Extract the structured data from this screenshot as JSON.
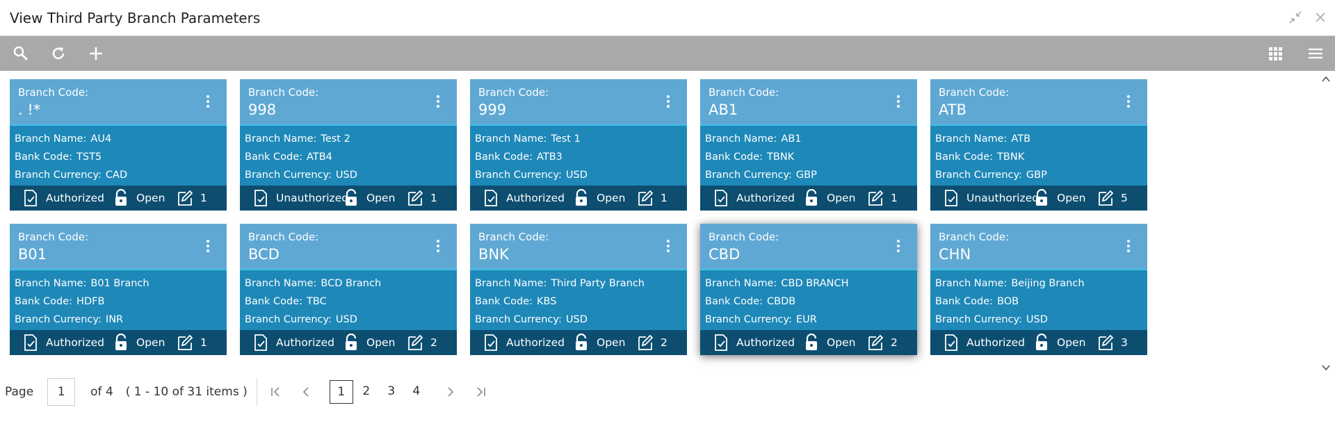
{
  "window": {
    "title": "View Third Party Branch Parameters"
  },
  "toolbar": {
    "icons": [
      "search-icon",
      "refresh-icon",
      "add-icon",
      "grid-view-icon",
      "list-view-icon"
    ]
  },
  "card_labels": {
    "code": "Branch Code:",
    "name": "Branch Name:",
    "bank": "Bank Code:",
    "currency": "Branch Currency:"
  },
  "cards": [
    {
      "code": ". !*",
      "name": "AU4",
      "bank": "TST5",
      "currency": "CAD",
      "status": "Authorized",
      "lock": "Open",
      "mods": "1"
    },
    {
      "code": "998",
      "name": "Test 2",
      "bank": "ATB4",
      "currency": "USD",
      "status": "Unauthorized",
      "lock": "Open",
      "mods": "1"
    },
    {
      "code": "999",
      "name": "Test 1",
      "bank": "ATB3",
      "currency": "USD",
      "status": "Authorized",
      "lock": "Open",
      "mods": "1"
    },
    {
      "code": "AB1",
      "name": "AB1",
      "bank": "TBNK",
      "currency": "GBP",
      "status": "Authorized",
      "lock": "Open",
      "mods": "1"
    },
    {
      "code": "ATB",
      "name": "ATB",
      "bank": "TBNK",
      "currency": "GBP",
      "status": "Unauthorized",
      "lock": "Open",
      "mods": "5"
    },
    {
      "code": "B01",
      "name": "B01 Branch",
      "bank": "HDFB",
      "currency": "INR",
      "status": "Authorized",
      "lock": "Open",
      "mods": "1"
    },
    {
      "code": "BCD",
      "name": "BCD Branch",
      "bank": "TBC",
      "currency": "USD",
      "status": "Authorized",
      "lock": "Open",
      "mods": "2"
    },
    {
      "code": "BNK",
      "name": "Third Party Branch",
      "bank": "KBS",
      "currency": "USD",
      "status": "Authorized",
      "lock": "Open",
      "mods": "2"
    },
    {
      "code": "CBD",
      "name": "CBD BRANCH",
      "bank": "CBDB",
      "currency": "EUR",
      "status": "Authorized",
      "lock": "Open",
      "mods": "2"
    },
    {
      "code": "CHN",
      "name": "Beijing Branch",
      "bank": "BOB",
      "currency": "USD",
      "status": "Authorized",
      "lock": "Open",
      "mods": "3"
    }
  ],
  "pager": {
    "label": "Page",
    "current": "1",
    "of": "of 4",
    "items": "( 1 - 10 of 31 items )",
    "pages": [
      "1",
      "2",
      "3",
      "4"
    ]
  }
}
